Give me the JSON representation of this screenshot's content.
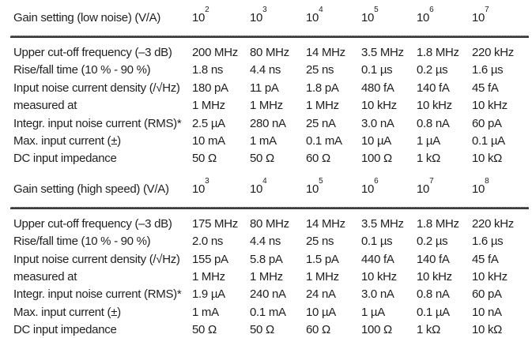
{
  "style": {
    "background": "#ffffff",
    "text_color": "#1f1f1f",
    "rule_color": "#3c3c3c"
  },
  "table": {
    "blocks": [
      {
        "header_label": "Gain setting (low noise) (V/A)",
        "gain_base": "10",
        "gain_exponents": [
          "2",
          "3",
          "4",
          "5",
          "6",
          "7"
        ],
        "rows": [
          {
            "label": "Upper cut-off frequency (–3 dB)",
            "values": [
              "200 MHz",
              "80 MHz",
              "14 MHz",
              "3.5 MHz",
              "1.8 MHz",
              "220 kHz"
            ]
          },
          {
            "label": "Rise/fall time (10 % - 90 %)",
            "values": [
              "1.8 ns",
              "4.4 ns",
              "25 ns",
              "0.1 µs",
              "0.2 µs",
              "1.6 µs"
            ]
          },
          {
            "label": "Input noise current density (/√Hz)",
            "values": [
              "180 pA",
              "11 pA",
              "1.8 pA",
              "480 fA",
              "140 fA",
              "45 fA"
            ]
          },
          {
            "label": "measured at",
            "values": [
              "1 MHz",
              "1 MHz",
              "1 MHz",
              "10 kHz",
              "10 kHz",
              "10 kHz"
            ]
          },
          {
            "label": "Integr. input noise current (RMS)*",
            "values": [
              "2.5 µA",
              "280 nA",
              "25 nA",
              "3.0 nA",
              "0.8 nA",
              "60 pA"
            ]
          },
          {
            "label": "Max. input current (±)",
            "values": [
              "10 mA",
              "1 mA",
              "0.1 mA",
              "10 µA",
              "1 µA",
              "0.1 µA"
            ]
          },
          {
            "label": "DC input impedance",
            "values": [
              "50 Ω",
              "50 Ω",
              "60 Ω",
              "100 Ω",
              "1 kΩ",
              "10 kΩ"
            ]
          }
        ]
      },
      {
        "header_label": "Gain setting (high speed) (V/A)",
        "gain_base": "10",
        "gain_exponents": [
          "3",
          "4",
          "5",
          "6",
          "7",
          "8"
        ],
        "rows": [
          {
            "label": "Upper cut-off frequency (–3 dB)",
            "values": [
              "175 MHz",
              "80 MHz",
              "14 MHz",
              "3.5 MHz",
              "1.8 MHz",
              "220 kHz"
            ]
          },
          {
            "label": "Rise/fall time (10 % - 90 %)",
            "values": [
              "2.0 ns",
              "4.4 ns",
              "25 ns",
              "0.1 µs",
              "0.2 µs",
              "1.6 µs"
            ]
          },
          {
            "label": "Input noise current density (/√Hz)",
            "values": [
              "155 pA",
              "5.8 pA",
              "1.5 pA",
              "440 fA",
              "140 fA",
              "45 fA"
            ]
          },
          {
            "label": "measured at",
            "values": [
              "1 MHz",
              "1 MHz",
              "1 MHz",
              "10 kHz",
              "10 kHz",
              "10 kHz"
            ]
          },
          {
            "label": "Integr. input noise current (RMS)*",
            "values": [
              "1.9 µA",
              "240 nA",
              "24 nA",
              "3.0 nA",
              "0.8 nA",
              "60 pA"
            ]
          },
          {
            "label": "Max. input current (±)",
            "values": [
              "1 mA",
              "0.1 mA",
              "10 µA",
              "1 µA",
              "0.1 µA",
              "10 nA"
            ]
          },
          {
            "label": "DC input impedance",
            "values": [
              "50 Ω",
              "50 Ω",
              "60 Ω",
              "100 Ω",
              "1 kΩ",
              "10 kΩ"
            ]
          }
        ]
      }
    ]
  }
}
